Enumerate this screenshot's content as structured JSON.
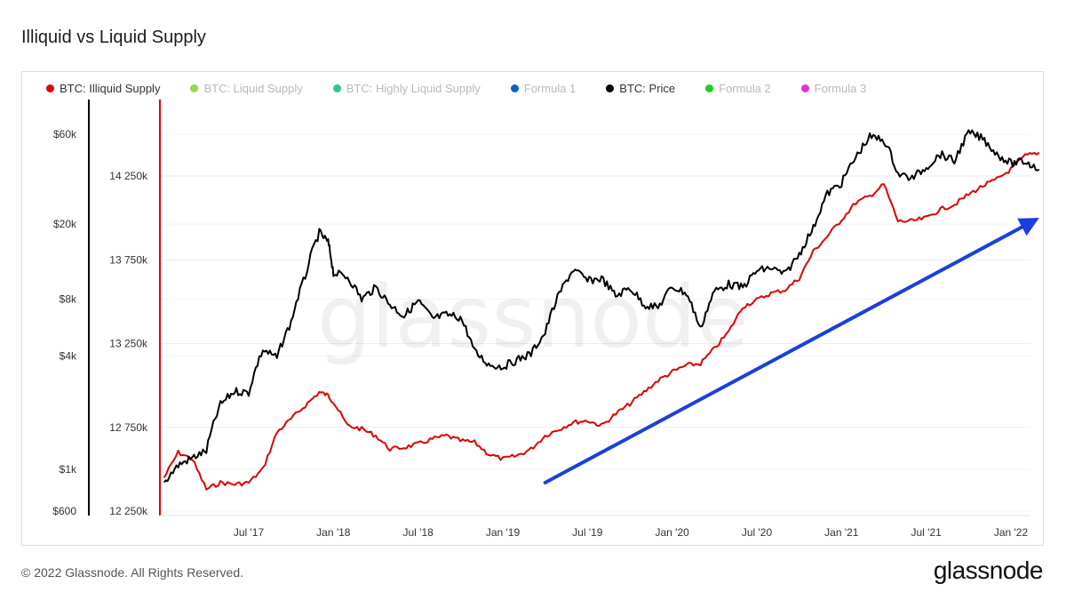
{
  "title": "Illiquid vs Liquid Supply",
  "footer": "© 2022 Glassnode. All Rights Reserved.",
  "logo": "glassnode",
  "chart_data": {
    "type": "line",
    "title": "Illiquid vs Liquid Supply",
    "watermark": "glassnode",
    "legend": [
      {
        "name": "BTC: Illiquid Supply",
        "color": "#e00000",
        "active": true
      },
      {
        "name": "BTC: Liquid Supply",
        "color": "#8fd94a",
        "active": false
      },
      {
        "name": "BTC: Highly Liquid Supply",
        "color": "#2ec59a",
        "active": false
      },
      {
        "name": "Formula 1",
        "color": "#1060d0",
        "active": false
      },
      {
        "name": "BTC: Price",
        "color": "#000000",
        "active": true
      },
      {
        "name": "Formula 2",
        "color": "#22cc22",
        "active": false
      },
      {
        "name": "Formula 3",
        "color": "#dd33dd",
        "active": false
      }
    ],
    "x_ticks": [
      "Jul '17",
      "Jan '18",
      "Jul '18",
      "Jan '19",
      "Jul '19",
      "Jan '20",
      "Jul '20",
      "Jan '21",
      "Jul '21",
      "Jan '22"
    ],
    "x_range": [
      "2017-01",
      "2022-03"
    ],
    "y_left": {
      "scale": "log",
      "ticks": [
        "$60k",
        "$20k",
        "$8k",
        "$4k",
        "$1k",
        "$600"
      ],
      "tick_values": [
        60000,
        20000,
        8000,
        4000,
        1000,
        600
      ]
    },
    "y_right": {
      "scale": "linear",
      "ticks": [
        "14 250k",
        "13 750k",
        "13 250k",
        "12 750k",
        "12 250k"
      ],
      "tick_values": [
        14250000,
        13750000,
        13250000,
        12750000,
        12250000
      ]
    },
    "series": [
      {
        "name": "BTC: Illiquid Supply",
        "axis": "right",
        "color": "#e00000",
        "points": [
          [
            "2017-01",
            12450000
          ],
          [
            "2017-02",
            12600000
          ],
          [
            "2017-03",
            12560000
          ],
          [
            "2017-04",
            12380000
          ],
          [
            "2017-05",
            12420000
          ],
          [
            "2017-06",
            12410000
          ],
          [
            "2017-07",
            12420000
          ],
          [
            "2017-08",
            12500000
          ],
          [
            "2017-09",
            12720000
          ],
          [
            "2017-10",
            12800000
          ],
          [
            "2017-11",
            12880000
          ],
          [
            "2017-12",
            12960000
          ],
          [
            "2017-12-20",
            12940000
          ],
          [
            "2018-01",
            12900000
          ],
          [
            "2018-02",
            12760000
          ],
          [
            "2018-03",
            12740000
          ],
          [
            "2018-04",
            12700000
          ],
          [
            "2018-05",
            12620000
          ],
          [
            "2018-06",
            12630000
          ],
          [
            "2018-07",
            12650000
          ],
          [
            "2018-08",
            12680000
          ],
          [
            "2018-09",
            12700000
          ],
          [
            "2018-10",
            12670000
          ],
          [
            "2018-11",
            12660000
          ],
          [
            "2018-12",
            12590000
          ],
          [
            "2019-01",
            12560000
          ],
          [
            "2019-02",
            12580000
          ],
          [
            "2019-03",
            12620000
          ],
          [
            "2019-04",
            12700000
          ],
          [
            "2019-05",
            12740000
          ],
          [
            "2019-06",
            12780000
          ],
          [
            "2019-07",
            12790000
          ],
          [
            "2019-08",
            12760000
          ],
          [
            "2019-09",
            12830000
          ],
          [
            "2019-10",
            12890000
          ],
          [
            "2019-11",
            12960000
          ],
          [
            "2019-12",
            13030000
          ],
          [
            "2020-01",
            13080000
          ],
          [
            "2020-02",
            13120000
          ],
          [
            "2020-03",
            13130000
          ],
          [
            "2020-04",
            13220000
          ],
          [
            "2020-05",
            13320000
          ],
          [
            "2020-06",
            13470000
          ],
          [
            "2020-07",
            13510000
          ],
          [
            "2020-08",
            13550000
          ],
          [
            "2020-09",
            13570000
          ],
          [
            "2020-10",
            13640000
          ],
          [
            "2020-11",
            13800000
          ],
          [
            "2020-12",
            13890000
          ],
          [
            "2021-01",
            13990000
          ],
          [
            "2021-02",
            14090000
          ],
          [
            "2021-03",
            14130000
          ],
          [
            "2021-04",
            14200000
          ],
          [
            "2021-05",
            13980000
          ],
          [
            "2021-06",
            13980000
          ],
          [
            "2021-07",
            14000000
          ],
          [
            "2021-08",
            14050000
          ],
          [
            "2021-09",
            14080000
          ],
          [
            "2021-10",
            14140000
          ],
          [
            "2021-11",
            14190000
          ],
          [
            "2021-12",
            14230000
          ],
          [
            "2022-01",
            14290000
          ],
          [
            "2022-02",
            14370000
          ],
          [
            "2022-03",
            14390000
          ]
        ]
      },
      {
        "name": "BTC: Price",
        "axis": "left",
        "color": "#000000",
        "points": [
          [
            "2017-01",
            850
          ],
          [
            "2017-02",
            1050
          ],
          [
            "2017-03",
            1150
          ],
          [
            "2017-04",
            1250
          ],
          [
            "2017-05",
            2200
          ],
          [
            "2017-06",
            2600
          ],
          [
            "2017-07",
            2550
          ],
          [
            "2017-08",
            4300
          ],
          [
            "2017-09",
            3900
          ],
          [
            "2017-10",
            6000
          ],
          [
            "2017-11",
            10500
          ],
          [
            "2017-12",
            18000
          ],
          [
            "2017-12-20",
            16000
          ],
          [
            "2018-01",
            11000
          ],
          [
            "2018-02",
            10500
          ],
          [
            "2018-03",
            8000
          ],
          [
            "2018-04",
            9200
          ],
          [
            "2018-05",
            7500
          ],
          [
            "2018-06",
            6500
          ],
          [
            "2018-07",
            7800
          ],
          [
            "2018-08",
            6300
          ],
          [
            "2018-09",
            6600
          ],
          [
            "2018-10",
            6400
          ],
          [
            "2018-11",
            4200
          ],
          [
            "2018-12",
            3600
          ],
          [
            "2019-01",
            3500
          ],
          [
            "2019-02",
            3800
          ],
          [
            "2019-03",
            4100
          ],
          [
            "2019-04",
            5300
          ],
          [
            "2019-05",
            8500
          ],
          [
            "2019-06",
            11500
          ],
          [
            "2019-07",
            10000
          ],
          [
            "2019-08",
            10300
          ],
          [
            "2019-09",
            8300
          ],
          [
            "2019-10",
            9200
          ],
          [
            "2019-11",
            7500
          ],
          [
            "2019-12",
            7200
          ],
          [
            "2020-01",
            9300
          ],
          [
            "2020-02",
            8600
          ],
          [
            "2020-03",
            5500
          ],
          [
            "2020-04",
            8800
          ],
          [
            "2020-05",
            9600
          ],
          [
            "2020-06",
            9200
          ],
          [
            "2020-07",
            11300
          ],
          [
            "2020-08",
            11700
          ],
          [
            "2020-09",
            10800
          ],
          [
            "2020-10",
            13800
          ],
          [
            "2020-11",
            19000
          ],
          [
            "2020-12",
            29000
          ],
          [
            "2021-01",
            33000
          ],
          [
            "2021-02",
            45000
          ],
          [
            "2021-03",
            58000
          ],
          [
            "2021-04",
            56000
          ],
          [
            "2021-05",
            37000
          ],
          [
            "2021-06",
            35000
          ],
          [
            "2021-07",
            40000
          ],
          [
            "2021-08",
            47000
          ],
          [
            "2021-09",
            43000
          ],
          [
            "2021-10",
            61000
          ],
          [
            "2021-11",
            57000
          ],
          [
            "2021-12",
            47000
          ],
          [
            "2022-01",
            42000
          ],
          [
            "2022-02",
            43000
          ],
          [
            "2022-03",
            39000
          ]
        ]
      }
    ],
    "annotations": [
      {
        "type": "arrow",
        "color": "#1a3fe0",
        "from": [
          "2019-04",
          12420000
        ],
        "to": [
          "2022-03",
          14000000
        ]
      }
    ]
  }
}
